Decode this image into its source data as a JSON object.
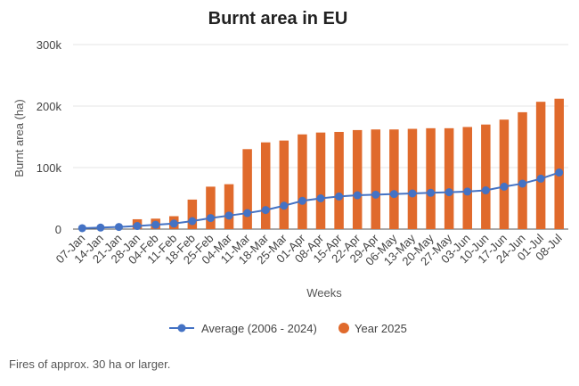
{
  "chart_data": {
    "type": "bar",
    "title": "Burnt area in EU",
    "xlabel": "Weeks",
    "ylabel": "Burnt area (ha)",
    "ylim": [
      0,
      300000
    ],
    "yticks": [
      0,
      100000,
      200000,
      300000
    ],
    "ytick_labels": [
      "0",
      "100k",
      "200k",
      "300k"
    ],
    "grid": true,
    "legend_position": "bottom",
    "categories": [
      "07-Jan",
      "14-Jan",
      "21-Jan",
      "28-Jan",
      "04-Feb",
      "11-Feb",
      "18-Feb",
      "25-Feb",
      "04-Mar",
      "11-Mar",
      "18-Mar",
      "25-Mar",
      "01-Apr",
      "08-Apr",
      "15-Apr",
      "22-Apr",
      "29-Apr",
      "06-May",
      "13-May",
      "20-May",
      "27-May",
      "03-Jun",
      "10-Jun",
      "17-Jun",
      "24-Jun",
      "01-Jul",
      "08-Jul"
    ],
    "series": [
      {
        "name": "Average (2006 - 2024)",
        "kind": "line",
        "color": "#4472c4",
        "values": [
          1500,
          2500,
          3500,
          5000,
          7000,
          9000,
          13000,
          18000,
          22000,
          26000,
          31000,
          38000,
          46000,
          50000,
          53000,
          55000,
          56000,
          57000,
          58000,
          59000,
          60000,
          61000,
          63000,
          69000,
          74000,
          82000,
          92000
        ]
      },
      {
        "name": "Year 2025",
        "kind": "bar",
        "color": "#e06a2c",
        "values": [
          0,
          0,
          0,
          16000,
          17000,
          21000,
          48000,
          69000,
          73000,
          130000,
          141000,
          144000,
          154000,
          157000,
          158000,
          161000,
          162000,
          162000,
          163000,
          164000,
          164000,
          166000,
          170000,
          178000,
          190000,
          207000,
          212000
        ]
      }
    ]
  },
  "footnote": "Fires of approx. 30 ha or larger."
}
